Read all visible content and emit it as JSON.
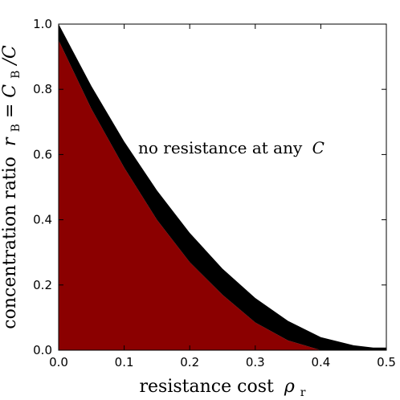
{
  "chart_data": {
    "type": "area",
    "title": "",
    "xlabel": "resistance cost",
    "xlabel_symbol": "ρ",
    "xlabel_symbol_sub": "r",
    "ylabel": "concentration ratio",
    "ylabel_symbol": "r",
    "ylabel_symbol_sub": "B",
    "ylabel_eq": "=",
    "ylabel_frac_num": "C",
    "ylabel_frac_num_sub": "B",
    "ylabel_frac_den": "/C",
    "xlim": [
      0.0,
      0.5
    ],
    "ylim": [
      0.0,
      1.0
    ],
    "xticks": [
      "0.0",
      "0.1",
      "0.2",
      "0.3",
      "0.4",
      "0.5"
    ],
    "yticks": [
      "0.0",
      "0.2",
      "0.4",
      "0.6",
      "0.8",
      "1.0"
    ],
    "grid": false,
    "fill_color": "#8b0000",
    "band_color": "#000000",
    "annotation": {
      "text": "no resistance at any",
      "symbol": "C",
      "x": 0.115,
      "y": 0.61
    },
    "series": [
      {
        "role": "lower-boundary",
        "x": [
          0.0,
          0.05,
          0.1,
          0.15,
          0.2,
          0.25,
          0.3,
          0.35,
          0.4
        ],
        "y": [
          0.95,
          0.74,
          0.56,
          0.4,
          0.27,
          0.17,
          0.085,
          0.03,
          0.0
        ]
      },
      {
        "role": "upper-boundary",
        "x": [
          0.0,
          0.05,
          0.1,
          0.15,
          0.2,
          0.25,
          0.3,
          0.35,
          0.4,
          0.45,
          0.48,
          0.5
        ],
        "y": [
          1.0,
          0.81,
          0.64,
          0.49,
          0.36,
          0.25,
          0.16,
          0.09,
          0.04,
          0.015,
          0.008,
          0.008
        ]
      }
    ]
  }
}
